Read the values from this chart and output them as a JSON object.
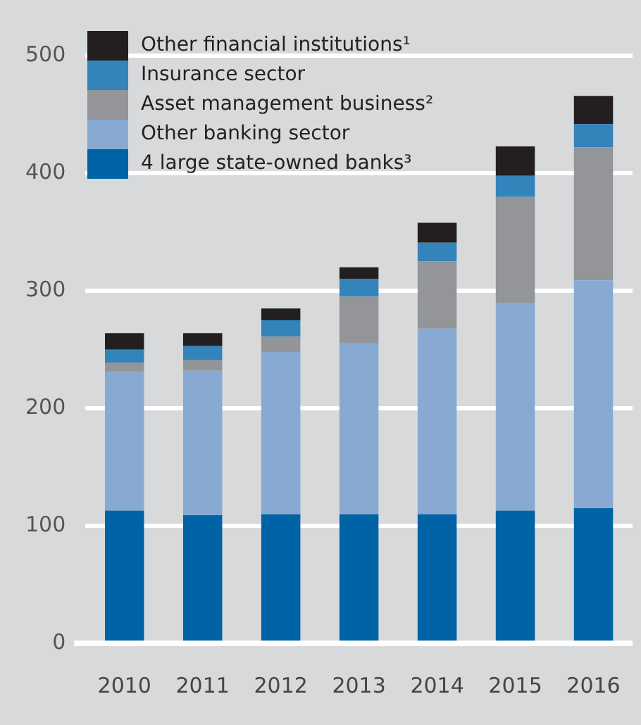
{
  "chart_data": {
    "type": "bar",
    "stacked": true,
    "categories": [
      "2010",
      "2011",
      "2012",
      "2013",
      "2014",
      "2015",
      "2016"
    ],
    "series": [
      {
        "name": "4 large state-owned banks³",
        "color": "#0063a6",
        "values": [
          113,
          109,
          110,
          110,
          110,
          113,
          115
        ]
      },
      {
        "name": "Other banking sector",
        "color": "#88aad2",
        "values": [
          118,
          123,
          138,
          145,
          158,
          177,
          194
        ]
      },
      {
        "name": "Asset management business²",
        "color": "#939598",
        "values": [
          8,
          9,
          13,
          40,
          57,
          90,
          113
        ]
      },
      {
        "name": "Insurance sector",
        "color": "#3384bb",
        "values": [
          11,
          12,
          14,
          15,
          16,
          18,
          20
        ]
      },
      {
        "name": "Other financial institutions¹",
        "color": "#231f20",
        "values": [
          14,
          11,
          10,
          10,
          17,
          25,
          24
        ]
      }
    ],
    "ylim": [
      0,
      520
    ],
    "yticks": [
      0,
      100,
      200,
      300,
      400,
      500
    ],
    "grid": "y",
    "legend": "top left"
  }
}
